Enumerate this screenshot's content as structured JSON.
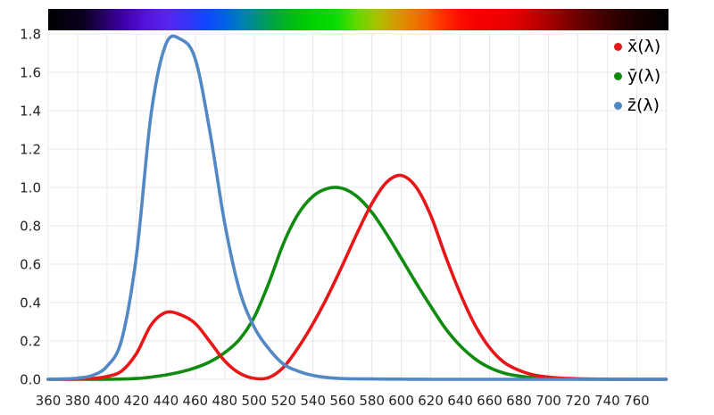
{
  "chart_data": {
    "type": "line",
    "title": "",
    "xlabel": "",
    "ylabel": "",
    "grid": true,
    "legend_position": "top-right",
    "xlim": [
      360,
      781
    ],
    "ylim": [
      0,
      1.8
    ],
    "x_gridline_step": 20,
    "y_gridline_step": 0.2,
    "x_tick_labels": [
      "360",
      "380",
      "400",
      "420",
      "440",
      "460",
      "480",
      "500",
      "520",
      "540",
      "560",
      "580",
      "600",
      "620",
      "640",
      "660",
      "680",
      "700",
      "720",
      "740",
      "760"
    ],
    "y_tick_labels": [
      "0.0",
      "0.2",
      "0.4",
      "0.6",
      "0.8",
      "1.0",
      "1.2",
      "1.4",
      "1.6",
      "1.8"
    ],
    "x": [
      360,
      370,
      380,
      390,
      400,
      410,
      420,
      430,
      440,
      450,
      460,
      470,
      480,
      490,
      500,
      510,
      520,
      530,
      540,
      550,
      560,
      570,
      580,
      590,
      600,
      610,
      620,
      630,
      640,
      650,
      660,
      670,
      680,
      690,
      700,
      710,
      720,
      730,
      740,
      750,
      760,
      770,
      780
    ],
    "series": [
      {
        "name": "x-bar",
        "label": "x̄(λ)",
        "color": "#e81616",
        "values": [
          0.0001,
          0.0004,
          0.0014,
          0.0042,
          0.0143,
          0.0435,
          0.1344,
          0.2839,
          0.3483,
          0.3362,
          0.2908,
          0.1954,
          0.0956,
          0.032,
          0.0049,
          0.0093,
          0.0633,
          0.1655,
          0.2904,
          0.4334,
          0.5945,
          0.7621,
          0.9163,
          1.0263,
          1.0622,
          1.0026,
          0.8544,
          0.6424,
          0.4479,
          0.2835,
          0.1649,
          0.0874,
          0.0468,
          0.0227,
          0.0114,
          0.0058,
          0.0029,
          0.0014,
          0.0007,
          0.0003,
          0.0002,
          0.0001,
          0.0
        ]
      },
      {
        "name": "y-bar",
        "label": "ȳ(λ)",
        "color": "#0f8b0f",
        "values": [
          0.0,
          0.0,
          0.0,
          0.0001,
          0.0004,
          0.0012,
          0.004,
          0.0116,
          0.023,
          0.038,
          0.06,
          0.091,
          0.139,
          0.208,
          0.323,
          0.503,
          0.71,
          0.862,
          0.954,
          0.995,
          0.995,
          0.952,
          0.87,
          0.757,
          0.631,
          0.503,
          0.381,
          0.265,
          0.175,
          0.107,
          0.061,
          0.032,
          0.017,
          0.0082,
          0.0041,
          0.0021,
          0.001,
          0.0005,
          0.0002,
          0.0001,
          0.0001,
          0.0,
          0.0
        ]
      },
      {
        "name": "z-bar",
        "label": "z̄(λ)",
        "color": "#5289c5",
        "values": [
          0.0006,
          0.0019,
          0.0065,
          0.0201,
          0.0679,
          0.2074,
          0.6456,
          1.3856,
          1.7471,
          1.7721,
          1.6692,
          1.2876,
          0.813,
          0.4652,
          0.272,
          0.1582,
          0.0782,
          0.0422,
          0.0203,
          0.0087,
          0.0039,
          0.0021,
          0.0017,
          0.0011,
          0.0008,
          0.0003,
          0.0002,
          0.0,
          0.0,
          0.0,
          0.0,
          0.0,
          0.0,
          0.0,
          0.0,
          0.0,
          0.0,
          0.0,
          0.0,
          0.0,
          0.0,
          0.0,
          0.0
        ]
      }
    ],
    "spectrum_bar": {
      "stops": [
        {
          "nm": 360,
          "color": "#000000"
        },
        {
          "nm": 384,
          "color": "#0c0022"
        },
        {
          "nm": 398,
          "color": "#250063"
        },
        {
          "nm": 412,
          "color": "#3f00ad"
        },
        {
          "nm": 426,
          "color": "#5512dd"
        },
        {
          "nm": 442,
          "color": "#5726ee"
        },
        {
          "nm": 456,
          "color": "#3335f8"
        },
        {
          "nm": 468,
          "color": "#1048ff"
        },
        {
          "nm": 480,
          "color": "#0061e8"
        },
        {
          "nm": 492,
          "color": "#0080b4"
        },
        {
          "nm": 503,
          "color": "#009378"
        },
        {
          "nm": 514,
          "color": "#00a63e"
        },
        {
          "nm": 526,
          "color": "#00bd12"
        },
        {
          "nm": 540,
          "color": "#00d200"
        },
        {
          "nm": 556,
          "color": "#0cdc04"
        },
        {
          "nm": 570,
          "color": "#64d800"
        },
        {
          "nm": 583,
          "color": "#a6c300"
        },
        {
          "nm": 595,
          "color": "#cda000"
        },
        {
          "nm": 606,
          "color": "#e68000"
        },
        {
          "nm": 617,
          "color": "#f85c00"
        },
        {
          "nm": 628,
          "color": "#ff3000"
        },
        {
          "nm": 640,
          "color": "#fb0d00"
        },
        {
          "nm": 652,
          "color": "#f40000"
        },
        {
          "nm": 668,
          "color": "#ee0000"
        },
        {
          "nm": 684,
          "color": "#d40000"
        },
        {
          "nm": 698,
          "color": "#ad0000"
        },
        {
          "nm": 712,
          "color": "#830000"
        },
        {
          "nm": 726,
          "color": "#5c0000"
        },
        {
          "nm": 742,
          "color": "#380000"
        },
        {
          "nm": 758,
          "color": "#1c0000"
        },
        {
          "nm": 772,
          "color": "#0b0000"
        },
        {
          "nm": 781,
          "color": "#000000"
        }
      ]
    },
    "style": {
      "gridline_color": "#e8e8e8",
      "tick_text_color": "#242424",
      "curve_width": 3.6
    }
  }
}
